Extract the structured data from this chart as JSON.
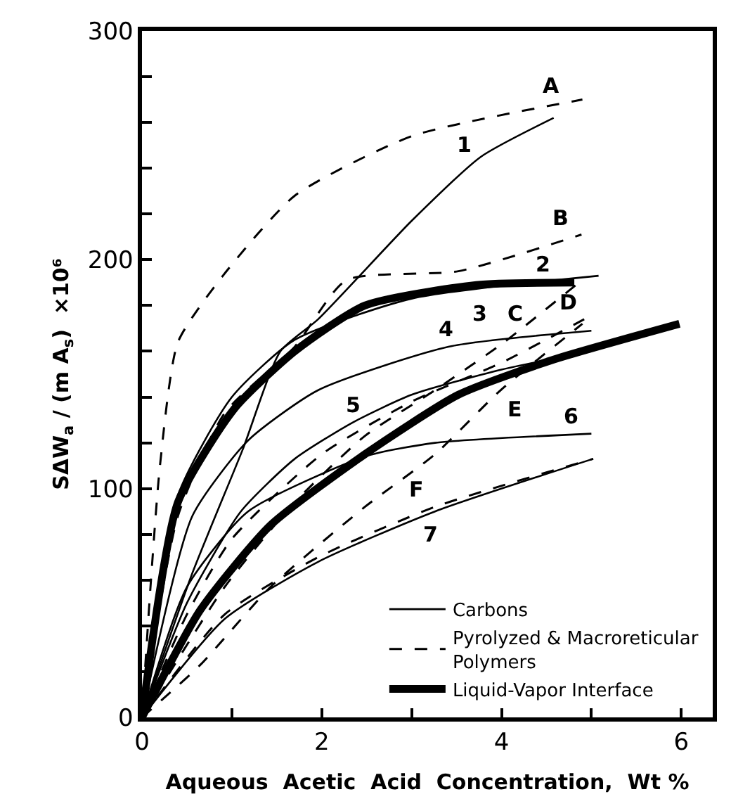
{
  "chart_data": {
    "type": "line",
    "xlabel": "Aqueous  Acetic  Acid  Concentration,  Wt %",
    "ylabel": "SΔW$_{a}$ / (m A$_{s}$)  ×10⁶",
    "xlim": [
      0,
      6.35
    ],
    "ylim": [
      0,
      300
    ],
    "xticks": [
      0,
      {
        "value": 1,
        "label": null
      },
      2,
      {
        "value": 3,
        "label": null
      },
      4,
      {
        "value": 5,
        "label": null
      },
      6
    ],
    "yticks": [
      0,
      {
        "value": 20,
        "label": null
      },
      {
        "value": 40,
        "label": null
      },
      {
        "value": 60,
        "label": null
      },
      {
        "value": 80,
        "label": null
      },
      100,
      {
        "value": 120,
        "label": null
      },
      {
        "value": 140,
        "label": null
      },
      {
        "value": 160,
        "label": null
      },
      {
        "value": 180,
        "label": null
      },
      200,
      {
        "value": 220,
        "label": null
      },
      {
        "value": 240,
        "label": null
      },
      {
        "value": 260,
        "label": null
      },
      {
        "value": 280,
        "label": null
      },
      300
    ],
    "marker": "none",
    "legend": "bottom right",
    "series": [
      {
        "line_style": "solid",
        "name": "Carbons",
        "color": "#000000",
        "x": [
          0,
          0.56,
          1.12,
          1.54,
          1.96,
          3.0,
          3.77,
          4.58,
          null,
          0,
          0.4,
          1.0,
          1.7,
          3.0,
          5.08,
          null,
          0,
          0.56,
          1.18,
          1.96,
          3.41,
          5.0,
          null,
          0,
          0.5,
          1.1,
          1.7,
          2.35,
          3.0,
          4.0,
          5.0,
          null,
          0,
          0.5,
          1.18,
          2.48,
          3.26,
          5.0,
          null,
          0,
          0.92,
          1.96,
          3.26,
          5.02
        ],
        "values": [
          0,
          63,
          117,
          160,
          174,
          217,
          245,
          262,
          null,
          0,
          97,
          140,
          165,
          183,
          193,
          null,
          0,
          88,
          121,
          143,
          162,
          169,
          null,
          0,
          50,
          90,
          113,
          129,
          141,
          152,
          160,
          null,
          0,
          57,
          90,
          114,
          120,
          124,
          null,
          0,
          43,
          68,
          90,
          113
        ]
      },
      {
        "line_style": "dashed",
        "name": "Pyrolyzed & Macroreticular\nPolymers",
        "color": "#000000",
        "x": [
          0,
          0.1,
          0.2,
          0.4,
          0.9,
          1.7,
          3.0,
          4.9,
          null,
          0,
          0.4,
          0.92,
          1.7,
          2.27,
          3.52,
          4.89,
          null,
          0,
          0.92,
          1.7,
          2.48,
          3.26,
          4.03,
          4.86,
          null,
          0,
          0.5,
          1.0,
          2.0,
          3.0,
          4.0,
          4.92,
          null,
          0,
          0.65,
          1.43,
          2.48,
          3.26,
          3.99,
          4.9,
          null,
          0,
          0.92,
          1.96,
          3.26,
          5.02
        ],
        "values": [
          0,
          60,
          110,
          164,
          193,
          228,
          254,
          270,
          null,
          0,
          88,
          133,
          162,
          191,
          195,
          211,
          null,
          0,
          57,
          94,
          123,
          143,
          164,
          190,
          null,
          0,
          45,
          78,
          115,
          138,
          155,
          174,
          null,
          0,
          23,
          57,
          92,
          115,
          143,
          172,
          null,
          0,
          45,
          70,
          92,
          113
        ]
      },
      {
        "line_style": "solid",
        "name": "Liquid-Vapor Interface",
        "color": "#000000",
        "x": [
          0,
          0.4,
          1.03,
          1.7,
          2.48,
          3.72,
          4.81,
          null,
          0,
          0.65,
          1.43,
          2.48,
          3.52,
          4.55,
          5.98
        ],
        "values": [
          0,
          94,
          135,
          160,
          180,
          189,
          190,
          null,
          0,
          47,
          84,
          115,
          141,
          156,
          172
        ]
      }
    ],
    "annotations": [
      {
        "text": "A",
        "x": 4.9,
        "y": 270
      },
      {
        "text": "1",
        "x": 3.77,
        "y": 245
      },
      {
        "text": "B",
        "x": 4.89,
        "y": 211
      },
      {
        "text": "2",
        "x": 5.08,
        "y": 193
      },
      {
        "text": "3",
        "x": 3.72,
        "y": 189
      },
      {
        "text": "C",
        "x": 4.03,
        "y": 164
      },
      {
        "text": "D",
        "x": 4.92,
        "y": 174
      },
      {
        "text": "4",
        "x": 3.41,
        "y": 162
      },
      {
        "text": "5",
        "x": 2.35,
        "y": 129
      },
      {
        "text": "E",
        "x": 3.99,
        "y": 143
      },
      {
        "text": "6",
        "x": 5.0,
        "y": 124
      },
      {
        "text": "F",
        "x": 3.26,
        "y": 92
      },
      {
        "text": "7",
        "x": 3.26,
        "y": 90
      }
    ]
  }
}
